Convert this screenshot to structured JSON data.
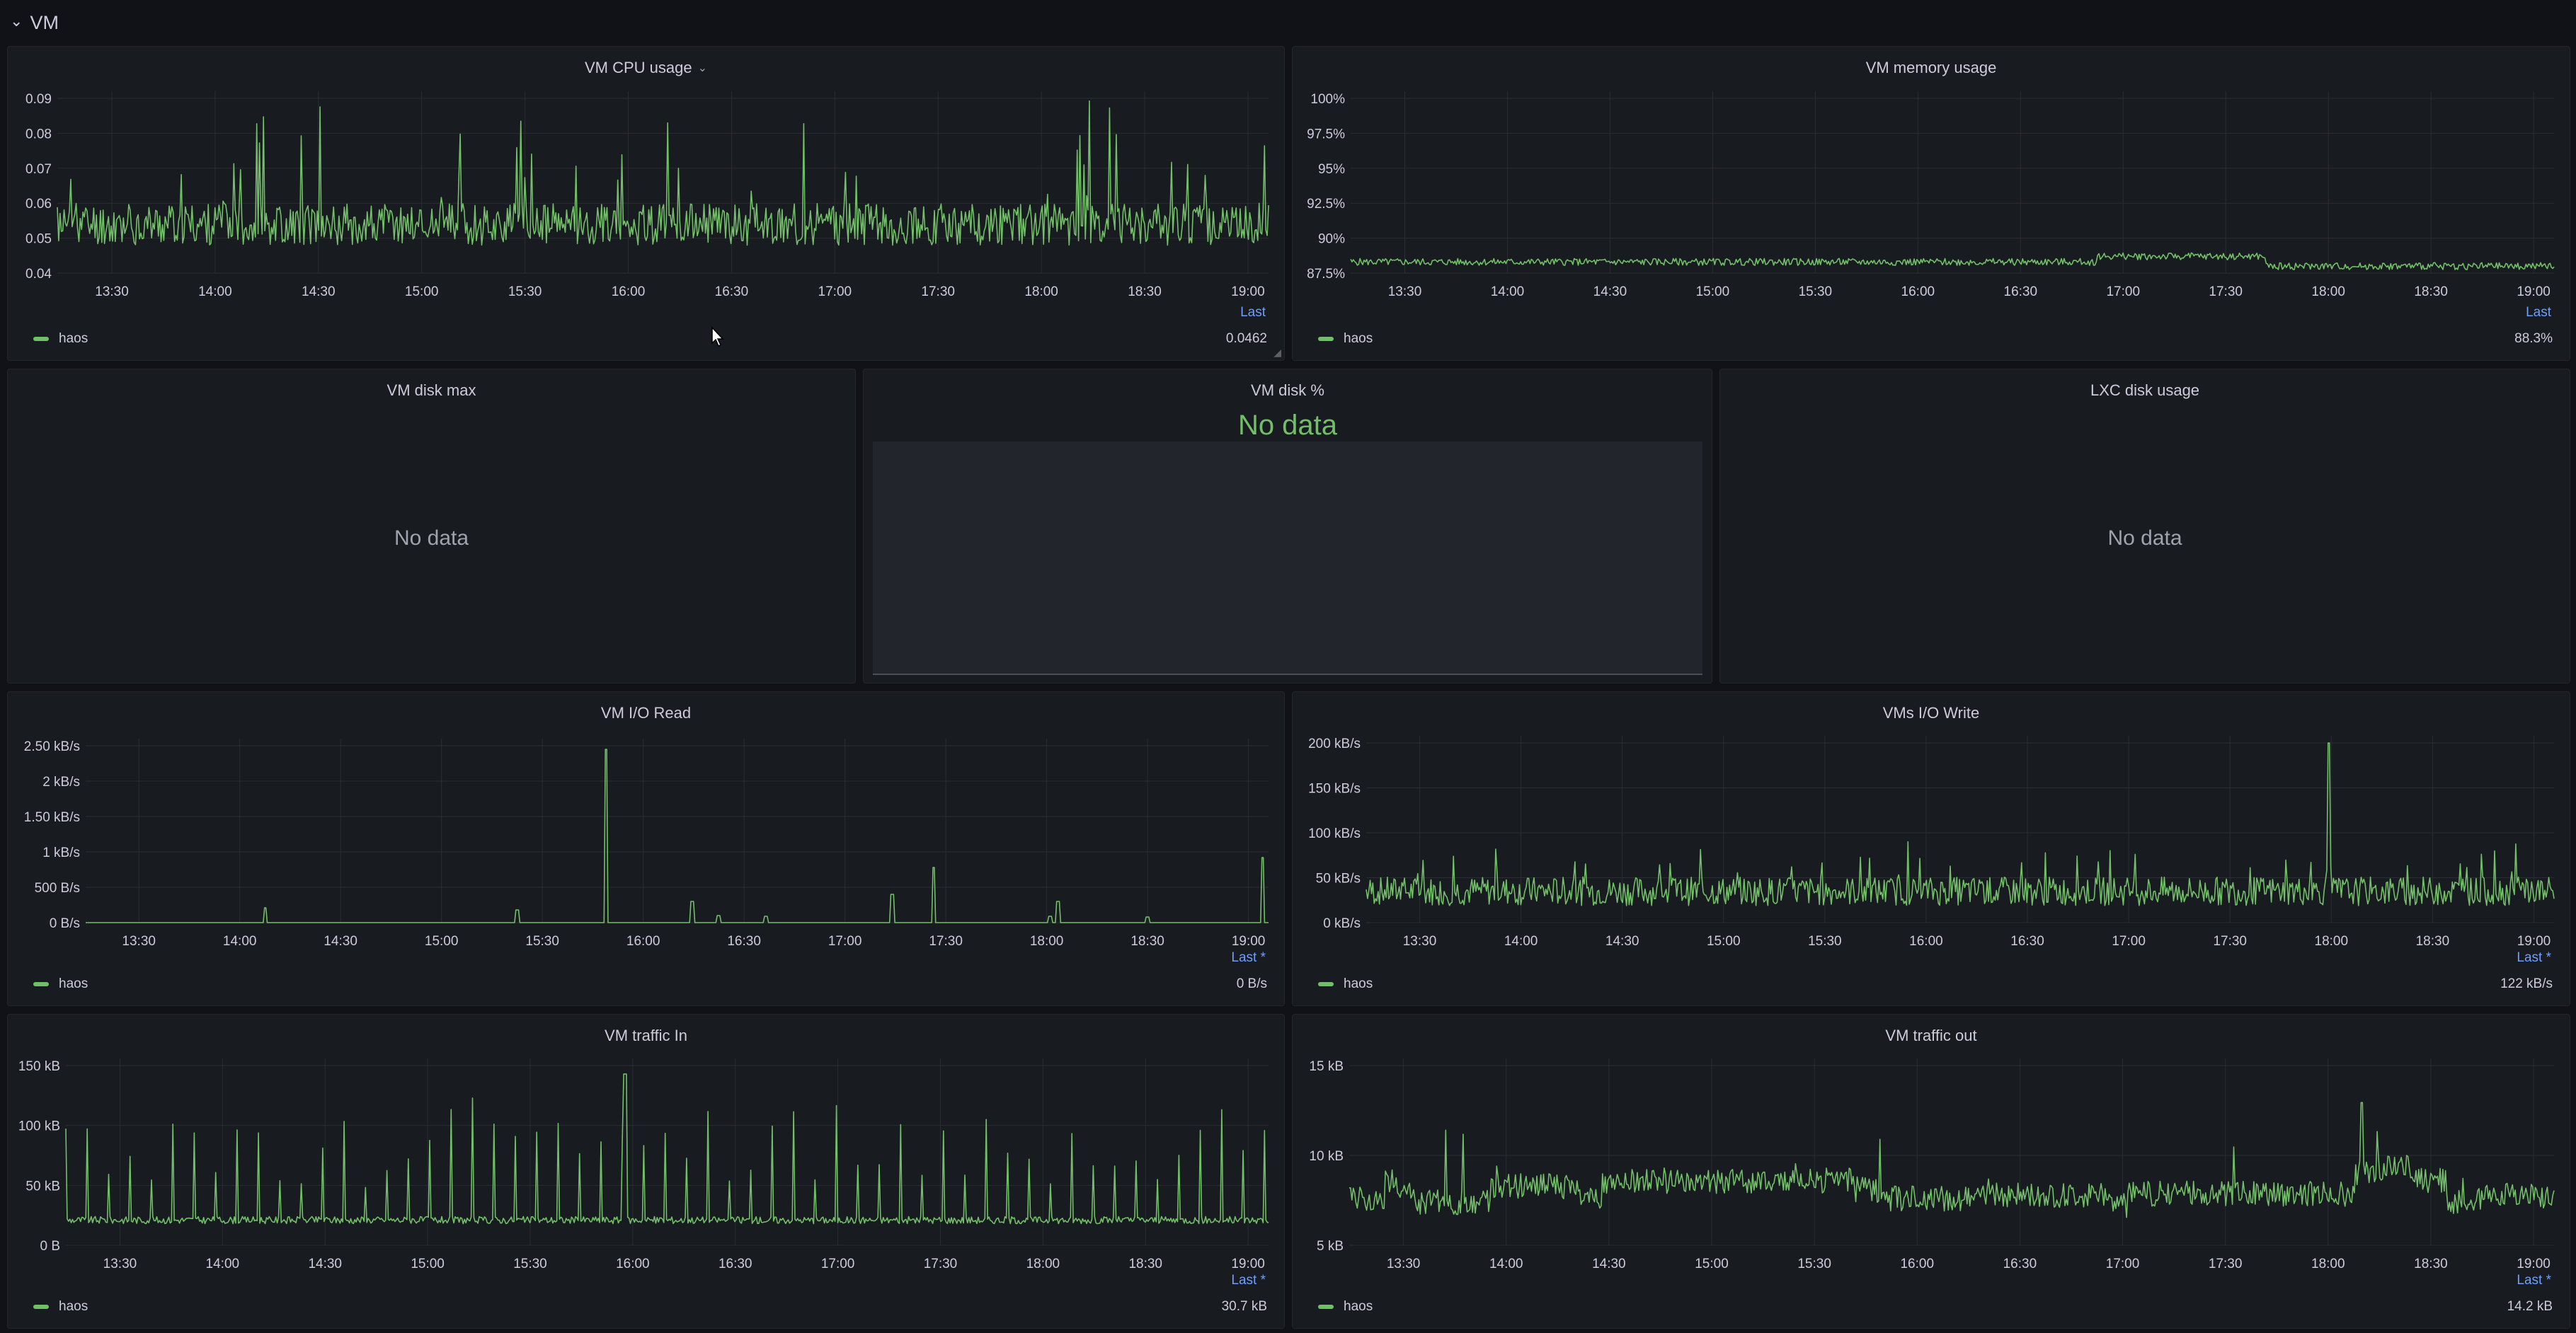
{
  "row": {
    "title": "VM",
    "collapse_icon": "chevron-down-icon"
  },
  "panels": {
    "cpu": {
      "title": "VM CPU usage",
      "legend_name": "haos",
      "legend_last_header": "Last",
      "legend_value": "0.0462"
    },
    "mem": {
      "title": "VM memory usage",
      "legend_name": "haos",
      "legend_last_header": "Last",
      "legend_value": "88.3%"
    },
    "disk_max": {
      "title": "VM disk max",
      "message": "No data"
    },
    "disk_pct": {
      "title": "VM disk %",
      "message": "No data"
    },
    "lxc_disk": {
      "title": "LXC disk usage",
      "message": "No data"
    },
    "io_read": {
      "title": "VM I/O Read",
      "legend_name": "haos",
      "legend_last_header": "Last *",
      "legend_value": "0 B/s"
    },
    "io_write": {
      "title": "VMs I/O Write",
      "legend_name": "haos",
      "legend_last_header": "Last *",
      "legend_value": "122 kB/s"
    },
    "traffic_in": {
      "title": "VM traffic In",
      "legend_name": "haos",
      "legend_last_header": "Last *",
      "legend_value": "30.7 kB"
    },
    "traffic_out": {
      "title": "VM traffic out",
      "legend_name": "haos",
      "legend_last_header": "Last *",
      "legend_value": "14.2 kB"
    }
  },
  "colors": {
    "series": "#73bf69",
    "legend_header": "#6e9fff",
    "grid": "#2a2d33",
    "axis_text": "#ccccdc"
  },
  "chart_data": [
    {
      "id": "cpu",
      "type": "line",
      "x_ticks": [
        "13:30",
        "14:00",
        "14:30",
        "15:00",
        "15:30",
        "16:00",
        "16:30",
        "17:00",
        "17:30",
        "18:00",
        "18:30",
        "19:00"
      ],
      "y_ticks": [
        "0.09",
        "0.08",
        "0.07",
        "0.06",
        "0.05",
        "0.04"
      ],
      "ylim": [
        0.04,
        0.09
      ],
      "series": [
        {
          "name": "haos",
          "color": "#73bf69",
          "pattern": "noise",
          "base": 0.054,
          "amp": 0.006,
          "spikes": 0.03,
          "seed": 11
        }
      ]
    },
    {
      "id": "mem",
      "type": "line",
      "x_ticks": [
        "13:30",
        "14:00",
        "14:30",
        "15:00",
        "15:30",
        "16:00",
        "16:30",
        "17:00",
        "17:30",
        "18:00",
        "18:30",
        "19:00"
      ],
      "y_ticks": [
        "100%",
        "97.5%",
        "95%",
        "92.5%",
        "90%",
        "87.5%"
      ],
      "ylim": [
        87.5,
        100
      ],
      "series": [
        {
          "name": "haos",
          "color": "#73bf69",
          "pattern": "flat",
          "base": 88.3,
          "amp": 0.25,
          "seed": 5
        }
      ]
    },
    {
      "id": "io_read",
      "type": "line",
      "x_ticks": [
        "13:30",
        "14:00",
        "14:30",
        "15:00",
        "15:30",
        "16:00",
        "16:30",
        "17:00",
        "17:30",
        "18:00",
        "18:30",
        "19:00"
      ],
      "y_ticks": [
        "2.50 kB/s",
        "2 kB/s",
        "1.50 kB/s",
        "1 kB/s",
        "500 B/s",
        "0 B/s"
      ],
      "ylim": [
        0,
        2500
      ],
      "series": [
        {
          "name": "haos",
          "color": "#73bf69",
          "pattern": "sparse",
          "spikes_at": [
            [
              0.152,
              210
            ],
            [
              0.365,
              180
            ],
            [
              0.44,
              2450
            ],
            [
              0.513,
              300
            ],
            [
              0.535,
              100
            ],
            [
              0.575,
              90
            ],
            [
              0.682,
              400
            ],
            [
              0.717,
              780
            ],
            [
              0.815,
              90
            ],
            [
              0.822,
              300
            ],
            [
              0.898,
              80
            ],
            [
              0.995,
              920
            ]
          ],
          "seed": 3
        }
      ]
    },
    {
      "id": "io_write",
      "type": "line",
      "x_ticks": [
        "13:30",
        "14:00",
        "14:30",
        "15:00",
        "15:30",
        "16:00",
        "16:30",
        "17:00",
        "17:30",
        "18:00",
        "18:30",
        "19:00"
      ],
      "y_ticks": [
        "200 kB/s",
        "150 kB/s",
        "100 kB/s",
        "50 kB/s",
        "0 kB/s"
      ],
      "ylim": [
        0,
        200
      ],
      "series": [
        {
          "name": "haos",
          "color": "#73bf69",
          "pattern": "noise",
          "base": 35,
          "amp": 16,
          "spikes": 55,
          "peak_at": [
            0.81,
            202
          ],
          "seed": 7
        }
      ]
    },
    {
      "id": "traffic_in",
      "type": "line",
      "x_ticks": [
        "13:30",
        "14:00",
        "14:30",
        "15:00",
        "15:30",
        "16:00",
        "16:30",
        "17:00",
        "17:30",
        "18:00",
        "18:30",
        "19:00"
      ],
      "y_ticks": [
        "150 kB",
        "100 kB",
        "50 kB",
        "0 B"
      ],
      "ylim": [
        0,
        150
      ],
      "series": [
        {
          "name": "haos",
          "color": "#73bf69",
          "pattern": "periodic",
          "base": 21,
          "amp": 3,
          "period": 48,
          "spikes": 75,
          "peak_at": [
            0.465,
            143
          ],
          "seed": 9
        }
      ]
    },
    {
      "id": "traffic_out",
      "type": "line",
      "x_ticks": [
        "13:30",
        "14:00",
        "14:30",
        "15:00",
        "15:30",
        "16:00",
        "16:30",
        "17:00",
        "17:30",
        "18:00",
        "18:30",
        "19:00"
      ],
      "y_ticks": [
        "15 kB",
        "10 kB",
        "5 kB"
      ],
      "ylim": [
        0,
        17
      ],
      "series": [
        {
          "name": "haos",
          "color": "#73bf69",
          "pattern": "steps",
          "base": 4.5,
          "amp": 1.2,
          "spikes": 6,
          "peak_at": [
            0.84,
            13.5
          ],
          "seed": 13
        }
      ]
    }
  ]
}
